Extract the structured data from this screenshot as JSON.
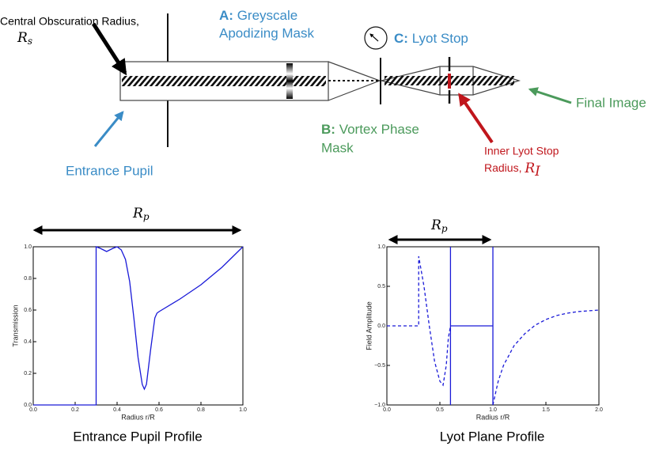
{
  "diagram": {
    "obscuration": {
      "line1": "Central Obscuration Radius,",
      "symbol": "R",
      "subscript": "s"
    },
    "mask_a": {
      "prefix": "A:",
      "line1": "Greyscale",
      "line2": "Apodizing Mask"
    },
    "lyot": {
      "prefix": "C:",
      "text": "Lyot Stop"
    },
    "final_image": "Final Image",
    "vortex": {
      "prefix": "B:",
      "line1": "Vortex Phase",
      "line2": "Mask"
    },
    "inner_lyot": {
      "line1": "Inner Lyot Stop",
      "line2": "Radius,",
      "symbol": "R",
      "subscript": "I"
    },
    "entrance_pupil": "Entrance Pupil"
  },
  "chart_data": [
    {
      "type": "line",
      "caption": "Entrance Pupil Profile",
      "xlabel": "Radius r/R",
      "ylabel": "Transmission",
      "letter": "A",
      "rp": {
        "symbol": "R",
        "subscript": "p"
      },
      "rs": {
        "symbol": "R",
        "subscript": "s"
      },
      "xlim": [
        0,
        1
      ],
      "ylim": [
        0,
        1
      ],
      "xticks": [
        {
          "value": 0,
          "label": "0.0"
        },
        {
          "value": 0.2,
          "label": "0.2"
        },
        {
          "value": 0.4,
          "label": "0.4"
        },
        {
          "value": 0.6,
          "label": "0.6"
        },
        {
          "value": 0.8,
          "label": "0.8"
        },
        {
          "value": 1,
          "label": "1.0"
        }
      ],
      "yticks": [
        {
          "value": 0,
          "label": "0.0"
        },
        {
          "value": 0.2,
          "label": "0.2"
        },
        {
          "value": 0.4,
          "label": "0.4"
        },
        {
          "value": 0.6,
          "label": "0.6"
        },
        {
          "value": 0.8,
          "label": "0.8"
        },
        {
          "value": 1,
          "label": "1.0"
        }
      ],
      "series": [
        {
          "color": "#1a1ad8",
          "style": "solid",
          "x": [
            0,
            0.3,
            0.3,
            0.32,
            0.35,
            0.38,
            0.4,
            0.42,
            0.44,
            0.46,
            0.48,
            0.5,
            0.52,
            0.53,
            0.54,
            0.56,
            0.58,
            0.59,
            0.6,
            0.7,
            0.8,
            0.9,
            1.0
          ],
          "values": [
            0,
            0,
            1,
            0.99,
            0.97,
            0.99,
            1.0,
            0.98,
            0.92,
            0.78,
            0.55,
            0.3,
            0.13,
            0.1,
            0.13,
            0.35,
            0.55,
            0.58,
            0.59,
            0.67,
            0.76,
            0.87,
            1.0
          ]
        }
      ]
    },
    {
      "type": "line",
      "caption": "Lyot Plane Profile",
      "xlabel": "Radius r/R",
      "ylabel": "Field Amplitude",
      "letter": "C",
      "rp": {
        "symbol": "R",
        "subscript": "p"
      },
      "ri": {
        "symbol": "R",
        "subscript": "I"
      },
      "xlim": [
        0,
        2
      ],
      "ylim": [
        -1,
        1
      ],
      "xticks": [
        {
          "value": 0,
          "label": "0.0"
        },
        {
          "value": 0.5,
          "label": "0.5"
        },
        {
          "value": 1,
          "label": "1.0"
        },
        {
          "value": 1.5,
          "label": "1.5"
        },
        {
          "value": 2,
          "label": "2.0"
        }
      ],
      "yticks": [
        {
          "value": -1,
          "label": "−1.0"
        },
        {
          "value": -0.5,
          "label": "−0.5"
        },
        {
          "value": 0,
          "label": "0.0"
        },
        {
          "value": 0.5,
          "label": "0.5"
        },
        {
          "value": 1,
          "label": "1.0"
        }
      ],
      "series": [
        {
          "color": "#1a1ad8",
          "style": "solid",
          "x": [
            0.6,
            0.6,
            0.6,
            1.0,
            1.0,
            1.0
          ],
          "values": [
            -1,
            1,
            0,
            0,
            1,
            -1
          ]
        },
        {
          "color": "#1a1ad8",
          "style": "dashed",
          "x": [
            0,
            0.3,
            0.3,
            0.35,
            0.4,
            0.45,
            0.5,
            0.53,
            0.56,
            0.58,
            0.6,
            null,
            1.0,
            1.05,
            1.1,
            1.2,
            1.3,
            1.4,
            1.5,
            1.6,
            1.7,
            1.8,
            1.9,
            2.0
          ],
          "values": [
            0,
            0,
            0.88,
            0.5,
            0.0,
            -0.45,
            -0.7,
            -0.75,
            -0.5,
            -0.15,
            0,
            null,
            -1,
            -0.7,
            -0.5,
            -0.25,
            -0.1,
            0.01,
            0.08,
            0.13,
            0.16,
            0.18,
            0.19,
            0.2
          ]
        }
      ]
    }
  ]
}
